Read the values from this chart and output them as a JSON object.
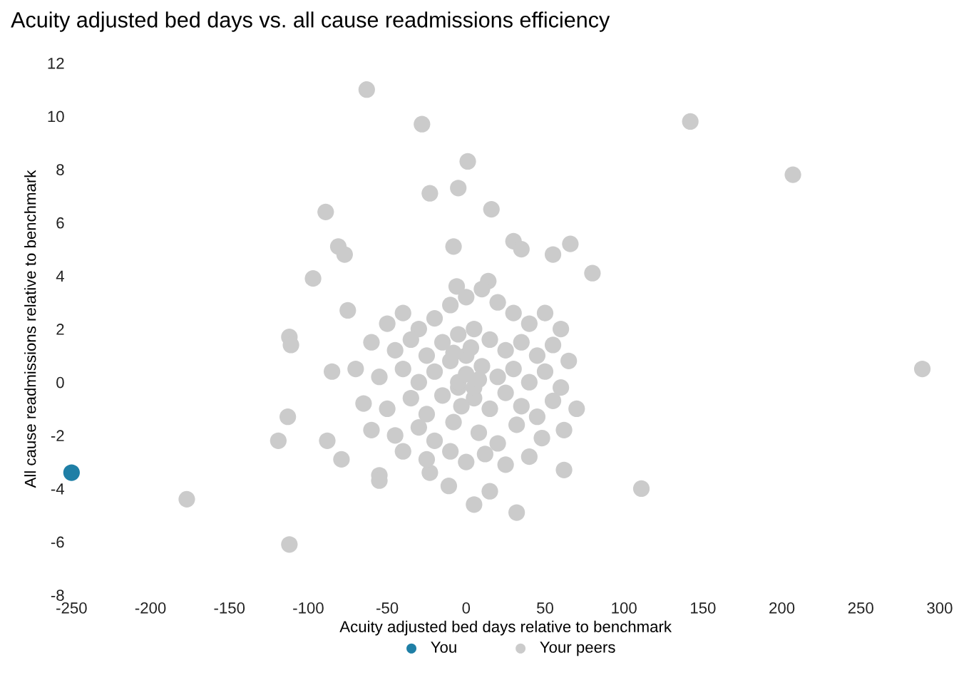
{
  "chart_data": {
    "type": "scatter",
    "title": "Acuity adjusted bed days vs. all cause readmissions efficiency",
    "xlabel": "Acuity adjusted bed days relative to benchmark",
    "ylabel": "All cause readmissions relative to benchmark",
    "xlim": [
      -250,
      300
    ],
    "ylim": [
      -8,
      12
    ],
    "xticks": [
      -250,
      -200,
      -150,
      -100,
      -50,
      0,
      50,
      100,
      150,
      200,
      250,
      300
    ],
    "yticks": [
      -8,
      -6,
      -4,
      -2,
      0,
      2,
      4,
      6,
      8,
      10,
      12
    ],
    "grid": false,
    "legend": "bottom",
    "marker": "circle",
    "series": [
      {
        "name": "You",
        "color": "#1f7fa6",
        "x": [
          -250
        ],
        "values": [
          -3.4
        ]
      },
      {
        "name": "Your peers",
        "color": "#cbcbcb",
        "x": [
          -63,
          -28,
          1,
          -5,
          -23,
          16,
          -89,
          142,
          207,
          289,
          -81,
          -77,
          -97,
          -8,
          30,
          35,
          66,
          55,
          80,
          14,
          -6,
          -75,
          -112,
          -111,
          -85,
          -113,
          -119,
          -88,
          -79,
          -55,
          -55,
          -177,
          -112,
          111,
          5,
          32,
          62,
          15,
          -11,
          -23,
          -50,
          -40,
          -30,
          -20,
          -10,
          0,
          10,
          20,
          30,
          40,
          50,
          60,
          -60,
          -45,
          -35,
          -25,
          -15,
          -5,
          5,
          15,
          25,
          35,
          45,
          55,
          65,
          -70,
          -55,
          -40,
          -30,
          -20,
          -10,
          0,
          10,
          20,
          30,
          40,
          50,
          60,
          -65,
          -50,
          -35,
          -25,
          -15,
          -5,
          5,
          15,
          25,
          35,
          45,
          55,
          70,
          -60,
          -45,
          -30,
          -20,
          -8,
          8,
          20,
          32,
          48,
          62,
          -40,
          -25,
          -10,
          0,
          12,
          25,
          40,
          -5,
          0,
          5,
          -3,
          3,
          -8,
          8
        ],
        "values": [
          11.0,
          9.7,
          8.3,
          7.3,
          7.1,
          6.5,
          6.4,
          9.8,
          7.8,
          0.5,
          5.1,
          4.8,
          3.9,
          5.1,
          5.3,
          5.0,
          5.2,
          4.8,
          4.1,
          3.8,
          3.6,
          2.7,
          1.7,
          1.4,
          0.4,
          -1.3,
          -2.2,
          -2.2,
          -2.9,
          -3.5,
          -3.7,
          -4.4,
          -6.1,
          -4.0,
          -4.6,
          -4.9,
          -3.3,
          -4.1,
          -3.9,
          -3.4,
          2.2,
          2.6,
          2.0,
          2.4,
          2.9,
          3.2,
          3.5,
          3.0,
          2.6,
          2.2,
          2.6,
          2.0,
          1.5,
          1.2,
          1.6,
          1.0,
          1.5,
          1.8,
          2.0,
          1.6,
          1.2,
          1.5,
          1.0,
          1.4,
          0.8,
          0.5,
          0.2,
          0.5,
          0.0,
          0.4,
          0.8,
          1.0,
          0.6,
          0.2,
          0.5,
          0.0,
          0.4,
          -0.2,
          -0.8,
          -1.0,
          -0.6,
          -1.2,
          -0.5,
          -0.2,
          -0.6,
          -1.0,
          -0.4,
          -0.9,
          -1.3,
          -0.7,
          -1.0,
          -1.8,
          -2.0,
          -1.7,
          -2.2,
          -1.5,
          -1.9,
          -2.3,
          -1.6,
          -2.1,
          -1.8,
          -2.6,
          -2.9,
          -2.6,
          -3.0,
          -2.7,
          -3.1,
          -2.8,
          0.0,
          0.3,
          -0.2,
          -0.9,
          1.3,
          1.1,
          0.1
        ]
      }
    ]
  }
}
